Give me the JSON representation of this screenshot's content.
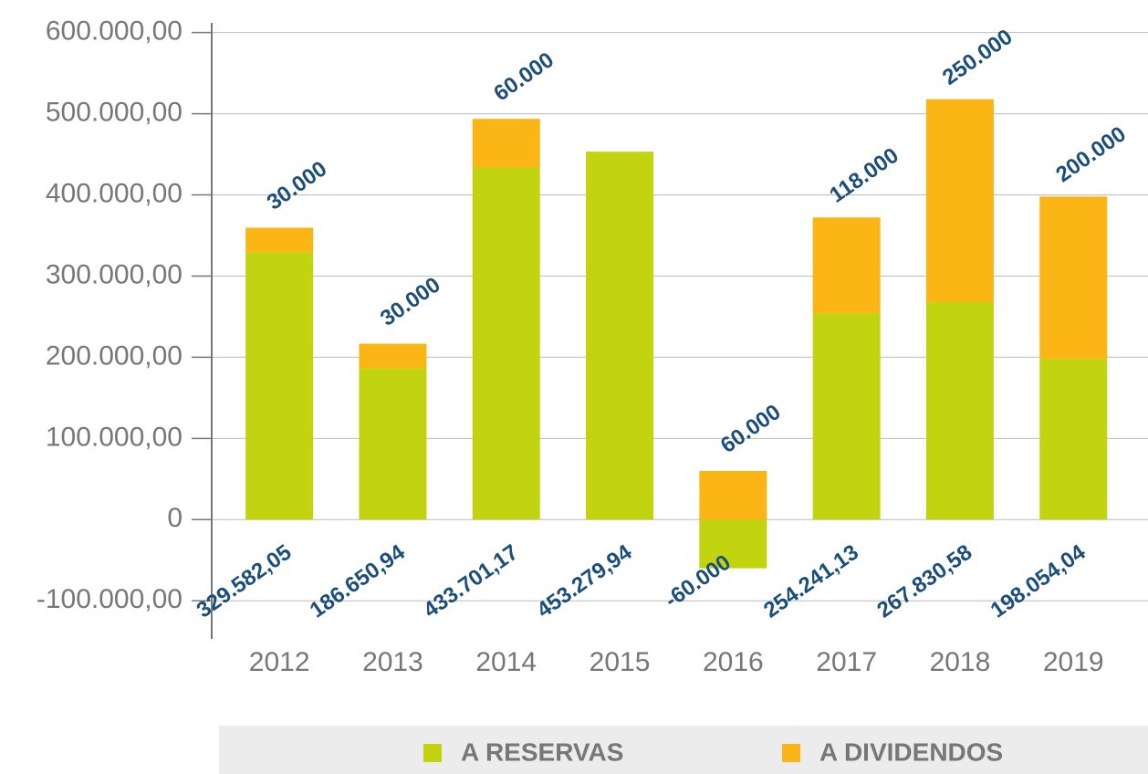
{
  "chart_data": {
    "type": "bar",
    "stacked": true,
    "categories": [
      "2012",
      "2013",
      "2014",
      "2015",
      "2016",
      "2017",
      "2018",
      "2019"
    ],
    "series": [
      {
        "name": "A RESERVAS",
        "color": "#c2d30f",
        "values": [
          329582.05,
          186650.94,
          433701.17,
          453279.94,
          -60000,
          254241.13,
          267830.58,
          198054.04
        ],
        "value_labels": [
          "329.582,05",
          "186.650,94",
          "433.701,17",
          "453.279,94",
          "-60.000",
          "254.241,13",
          "267.830,58",
          "198.054,04"
        ]
      },
      {
        "name": "A DIVIDENDOS",
        "color": "#fbb514",
        "values": [
          30000,
          30000,
          60000,
          null,
          60000,
          118000,
          250000,
          200000
        ],
        "value_labels": [
          "30.000",
          "30.000",
          "60.000",
          null,
          "60.000",
          "118.000",
          "250.000",
          "200.000"
        ]
      }
    ],
    "ylim": [
      -147000,
      612000
    ],
    "yticks": [
      {
        "value": -100000,
        "label": "-100.000,00"
      },
      0,
      {
        "value": 100000,
        "label": "100.000,00"
      },
      {
        "value": 200000,
        "label": "200.000,00"
      },
      {
        "value": 300000,
        "label": "300.000,00"
      },
      {
        "value": 400000,
        "label": "400.000,00"
      },
      {
        "value": 500000,
        "label": "500.000,00"
      },
      {
        "value": 600000,
        "label": "600.000,00"
      }
    ],
    "grid": true,
    "legend": "bottom"
  }
}
